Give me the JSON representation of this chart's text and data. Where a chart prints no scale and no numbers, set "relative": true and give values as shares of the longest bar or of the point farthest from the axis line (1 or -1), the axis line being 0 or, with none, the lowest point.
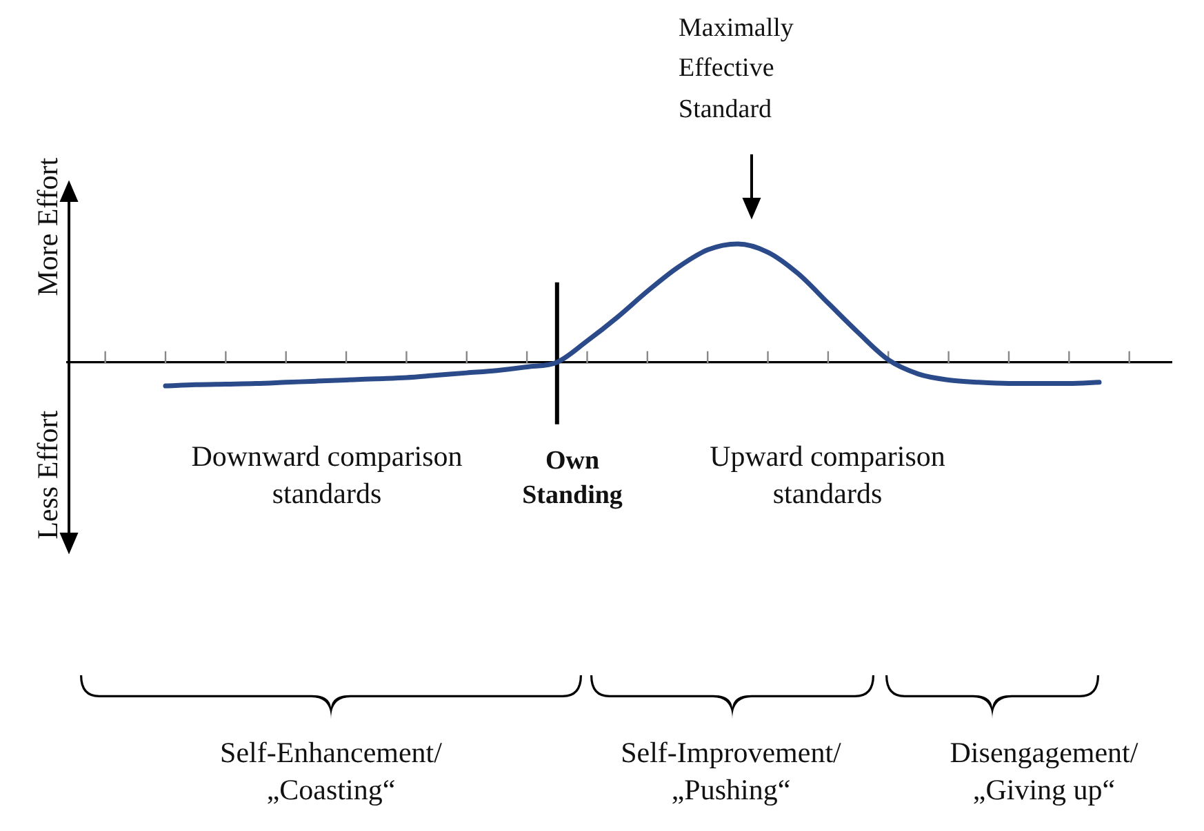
{
  "chart_data": {
    "type": "line",
    "relative": true,
    "categories": [
      null,
      null,
      null,
      null,
      null,
      null,
      null,
      null,
      null,
      null,
      null,
      null,
      null,
      null,
      null,
      null,
      null,
      null,
      null,
      null,
      null,
      null,
      null,
      null,
      null,
      null,
      null,
      null,
      null,
      null,
      null,
      null
    ],
    "series": [
      {
        "color": "#2b4a8a",
        "values": [
          -0.2,
          -0.19,
          -0.185,
          -0.18,
          -0.17,
          -0.16,
          -0.15,
          -0.14,
          -0.13,
          -0.11,
          -0.09,
          -0.07,
          -0.04,
          0,
          0.18,
          0.38,
          0.6,
          0.8,
          0.95,
          1,
          0.93,
          0.75,
          0.5,
          0.25,
          0.02,
          -0.1,
          -0.15,
          -0.17,
          -0.18,
          -0.18,
          -0.18,
          -0.17
        ]
      }
    ],
    "annotations": [
      "More Effort",
      "Less Effort",
      "Downward comparison standards",
      "Own Standing",
      "Upward comparison standards",
      "Maximally Effective Standard",
      "Self-Enhancement/ „Coasting“",
      "Self-Improvement/ „Pushing“",
      "Disengagement/ „Giving up“"
    ]
  }
}
